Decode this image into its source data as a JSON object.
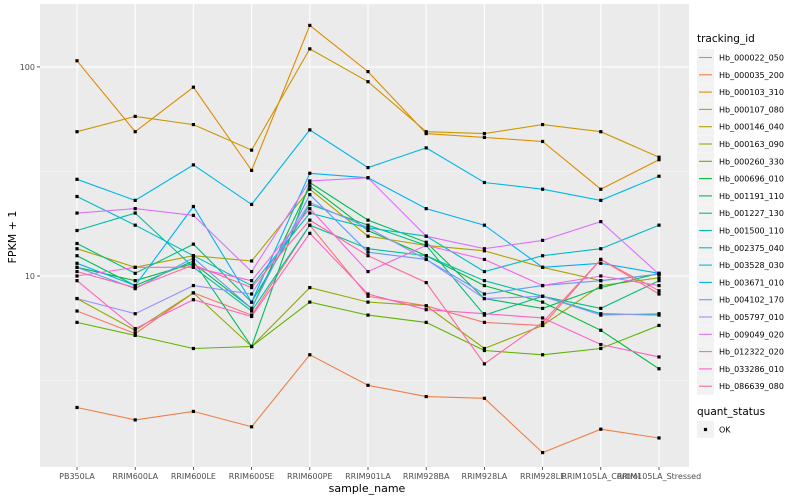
{
  "chart_data": {
    "type": "line",
    "xlabel": "sample_name",
    "ylabel": "FPKM + 1",
    "y_scale": "log10",
    "ylim": [
      1.22,
      200
    ],
    "y_ticks": [
      {
        "value": 100,
        "label": "100"
      },
      {
        "value": 10,
        "label": "10"
      }
    ],
    "grid": true,
    "legend_position": "right",
    "categories": [
      "PB350LA",
      "RRIM600LA",
      "RRIM600LE",
      "RRIM600SE",
      "RRIM600PE",
      "RRIM901LA",
      "RRIM928BA",
      "RRIM928LA",
      "RRIM928LE",
      "RRIM105LA_Control",
      "RRIM105LA_Stressed"
    ],
    "color_legend": {
      "title": "tracking_id"
    },
    "shape_legend": {
      "title": "quant_status",
      "entries": [
        "OK"
      ]
    },
    "series": [
      {
        "name": "Hb_000022_050",
        "color": "#F8766D",
        "values": [
          6.8,
          5.3,
          8.3,
          6.5,
          17.5,
          8.0,
          7.2,
          6.0,
          5.8,
          12.0,
          8.5
        ]
      },
      {
        "name": "Hb_000035_200",
        "color": "#EE8045",
        "values": [
          2.35,
          2.05,
          2.25,
          1.9,
          4.2,
          3.0,
          2.65,
          2.6,
          1.43,
          1.85,
          1.68
        ]
      },
      {
        "name": "Hb_000103_310",
        "color": "#DE8C00",
        "values": [
          107,
          49,
          80,
          32,
          158,
          95,
          48,
          46,
          44,
          26,
          36
        ]
      },
      {
        "name": "Hb_000107_080",
        "color": "#C99800",
        "values": [
          49,
          58,
          53,
          40,
          122,
          85,
          49,
          48,
          53,
          49,
          37
        ]
      },
      {
        "name": "Hb_000146_040",
        "color": "#B0A100",
        "values": [
          13.5,
          11.0,
          12.5,
          11.8,
          26.0,
          15.5,
          14.0,
          13.2,
          11.0,
          9.5,
          10.2
        ]
      },
      {
        "name": "Hb_000163_090",
        "color": "#93AA00",
        "values": [
          7.8,
          5.5,
          8.3,
          4.6,
          8.8,
          7.5,
          7.2,
          4.5,
          5.8,
          9.0,
          9.8
        ]
      },
      {
        "name": "Hb_000260_330",
        "color": "#5EB300",
        "values": [
          6.0,
          5.2,
          4.5,
          4.6,
          7.5,
          6.5,
          6.0,
          4.4,
          4.2,
          4.5,
          5.8
        ]
      },
      {
        "name": "Hb_000696_010",
        "color": "#00BA38",
        "values": [
          11.0,
          9.5,
          11.5,
          7.0,
          27.0,
          16.5,
          12.5,
          9.0,
          7.5,
          5.5,
          3.6
        ]
      },
      {
        "name": "Hb_001191_110",
        "color": "#00BC59",
        "values": [
          12.5,
          9.0,
          11.8,
          4.6,
          28.0,
          18.5,
          14.5,
          7.8,
          7.0,
          8.8,
          10.3
        ]
      },
      {
        "name": "Hb_001227_130",
        "color": "#00BF7D",
        "values": [
          14.3,
          10.3,
          14.2,
          7.5,
          22.0,
          17.5,
          14.0,
          6.5,
          8.0,
          7.0,
          9.5
        ]
      },
      {
        "name": "Hb_001500_110",
        "color": "#00C0A3",
        "values": [
          16.5,
          20.0,
          11.0,
          6.8,
          17.5,
          13.5,
          12.5,
          9.5,
          8.0,
          6.6,
          6.5
        ]
      },
      {
        "name": "Hb_002375_040",
        "color": "#00BCC4",
        "values": [
          24.0,
          17.5,
          12.5,
          9.0,
          20.0,
          17.0,
          15.5,
          10.5,
          12.5,
          13.5,
          17.5
        ]
      },
      {
        "name": "Hb_003528_030",
        "color": "#00B8E3",
        "values": [
          29,
          23,
          34,
          22,
          50,
          33,
          41,
          28,
          26,
          23,
          30
        ]
      },
      {
        "name": "Hb_003671_010",
        "color": "#00B0F6",
        "values": [
          11.5,
          9.0,
          21.5,
          7.5,
          31,
          29.5,
          21,
          17.5,
          11,
          11.5,
          10.3
        ]
      },
      {
        "name": "Hb_004102_170",
        "color": "#619CFF",
        "values": [
          11.0,
          8.7,
          12.2,
          7.0,
          24.5,
          13.0,
          12.0,
          8.2,
          9.0,
          9.5,
          10.2
        ]
      },
      {
        "name": "Hb_005797_010",
        "color": "#9590FF",
        "values": [
          7.8,
          6.6,
          9.0,
          8.2,
          22.5,
          17.0,
          12.0,
          7.8,
          8.0,
          6.5,
          6.6
        ]
      },
      {
        "name": "Hb_009049_020",
        "color": "#DB72FB",
        "values": [
          20.0,
          21.0,
          19.5,
          10.5,
          28.5,
          29.5,
          15.5,
          13.5,
          14.8,
          18.2,
          10.2
        ]
      },
      {
        "name": "Hb_012322_020",
        "color": "#F365E6",
        "values": [
          10.0,
          11.0,
          11.0,
          9.5,
          21.0,
          10.5,
          14.0,
          12.0,
          9.0,
          10.0,
          9.0
        ]
      },
      {
        "name": "Hb_033286_010",
        "color": "#FF61C3",
        "values": [
          9.5,
          5.6,
          7.7,
          6.4,
          16.0,
          8.2,
          6.9,
          6.6,
          6.3,
          4.7,
          4.1
        ]
      },
      {
        "name": "Hb_086639_080",
        "color": "#FF699C",
        "values": [
          10.5,
          8.8,
          11.3,
          8.8,
          18.5,
          12.5,
          9.3,
          3.8,
          6.0,
          12.0,
          8.2
        ]
      }
    ]
  }
}
